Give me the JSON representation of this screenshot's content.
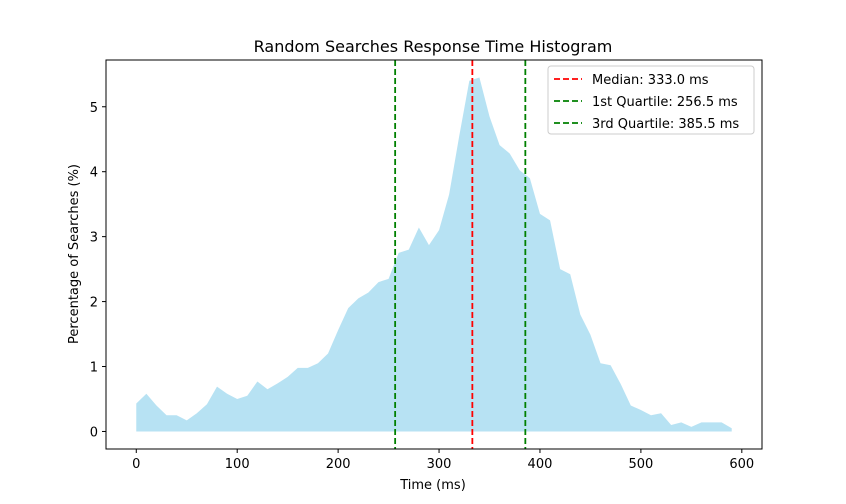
{
  "chart_data": {
    "type": "area",
    "title": "Random Searches Response Time Histogram",
    "xlabel": "Time (ms)",
    "ylabel": "Percentage of Searches (%)",
    "xlim": [
      -30,
      620
    ],
    "ylim": [
      -0.27,
      5.72
    ],
    "x_ticks": [
      0,
      100,
      200,
      300,
      400,
      500,
      600
    ],
    "y_ticks": [
      0,
      1,
      2,
      3,
      4,
      5
    ],
    "grid": false,
    "legend_position": "top-right",
    "fill_color": "#87ceeb",
    "series": [
      {
        "x": [
          0,
          10,
          20,
          30,
          40,
          50,
          60,
          70,
          80,
          90,
          100,
          110,
          120,
          130,
          140,
          150,
          160,
          170,
          180,
          190,
          200,
          210,
          220,
          230,
          240,
          250,
          260,
          270,
          280,
          290,
          300,
          310,
          320,
          330,
          340,
          350,
          360,
          370,
          380,
          390,
          400,
          410,
          420,
          430,
          440,
          450,
          460,
          470,
          480,
          490,
          500,
          510,
          520,
          530,
          540,
          550,
          560,
          570,
          580,
          590
        ],
        "y": [
          0.43,
          0.58,
          0.4,
          0.25,
          0.25,
          0.17,
          0.28,
          0.42,
          0.69,
          0.58,
          0.5,
          0.55,
          0.77,
          0.65,
          0.74,
          0.84,
          0.98,
          0.98,
          1.05,
          1.2,
          1.56,
          1.9,
          2.05,
          2.14,
          2.3,
          2.35,
          2.75,
          2.8,
          3.14,
          2.87,
          3.1,
          3.65,
          4.55,
          5.4,
          5.45,
          4.85,
          4.41,
          4.28,
          4.02,
          3.9,
          3.35,
          3.25,
          2.5,
          2.42,
          1.8,
          1.49,
          1.05,
          1.02,
          0.73,
          0.4,
          0.33,
          0.25,
          0.28,
          0.1,
          0.14,
          0.07,
          0.14,
          0.14,
          0.14,
          0.05
        ]
      }
    ],
    "vlines": [
      {
        "label": "Median: 333.0 ms",
        "x": 333.0,
        "color": "#ff0000"
      },
      {
        "label": "1st Quartile: 256.5 ms",
        "x": 256.5,
        "color": "#008000"
      },
      {
        "label": "3rd Quartile: 385.5 ms",
        "x": 385.5,
        "color": "#008000"
      }
    ]
  }
}
